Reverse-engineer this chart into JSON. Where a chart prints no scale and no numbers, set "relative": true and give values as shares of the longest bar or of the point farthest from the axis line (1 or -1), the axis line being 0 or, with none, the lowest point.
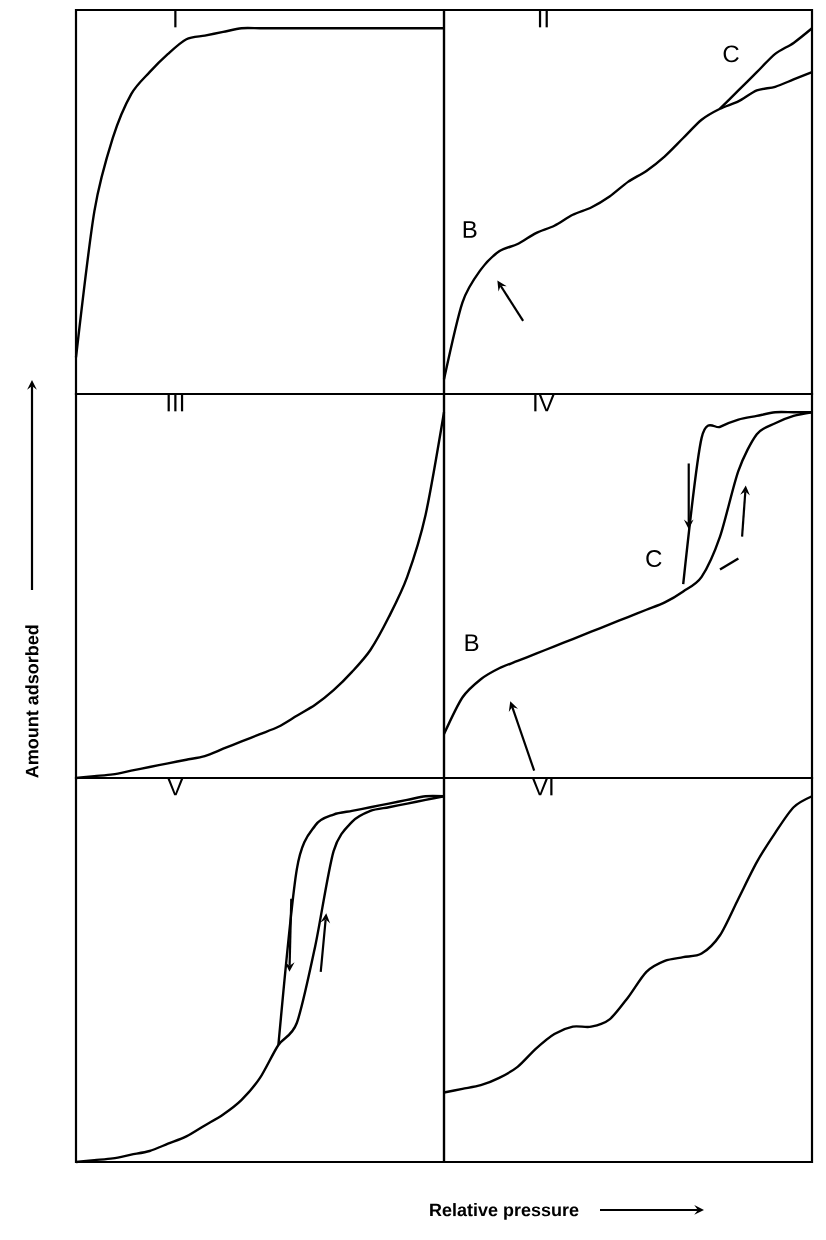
{
  "chart_data": [
    {
      "type": "line",
      "title": "I",
      "relative": true,
      "categories": [
        null,
        null,
        null,
        null,
        null,
        null,
        null,
        null,
        null,
        null,
        null,
        null,
        null,
        null,
        null,
        null,
        null,
        null,
        null,
        null,
        null
      ],
      "series": [
        {
          "color": "#000000",
          "values": [
            0.1,
            0.5,
            0.7,
            0.82,
            0.88,
            0.93,
            0.97,
            0.98,
            0.99,
            1,
            1,
            1,
            1,
            1,
            1,
            1,
            1,
            1,
            1,
            1,
            1
          ]
        }
      ]
    },
    {
      "type": "line",
      "title": "II",
      "relative": true,
      "categories": [
        null,
        null,
        null,
        null,
        null,
        null,
        null,
        null,
        null,
        null,
        null,
        null,
        null,
        null,
        null,
        null,
        null,
        null,
        null,
        null,
        null
      ],
      "annotations": [
        "B",
        "C"
      ],
      "series": [
        {
          "color": "#000000",
          "values": [
            0.04,
            0.25,
            0.34,
            0.39,
            0.41,
            0.44,
            0.46,
            0.49,
            0.51,
            0.54,
            0.58,
            0.61,
            0.65,
            0.7,
            0.75,
            0.78,
            0.8,
            0.83,
            0.84,
            0.86,
            0.88
          ]
        },
        {
          "color": "#000000",
          "values": [
            null,
            null,
            null,
            null,
            null,
            null,
            null,
            null,
            null,
            null,
            null,
            null,
            null,
            null,
            null,
            0.78,
            0.83,
            0.88,
            0.93,
            0.96,
            1
          ]
        }
      ]
    },
    {
      "type": "line",
      "title": "III",
      "relative": true,
      "ylabel": "Amount adsorbed",
      "categories": [
        null,
        null,
        null,
        null,
        null,
        null,
        null,
        null,
        null,
        null,
        null,
        null,
        null,
        null,
        null,
        null,
        null,
        null,
        null,
        null,
        null
      ],
      "series": [
        {
          "color": "#000000",
          "values": [
            0,
            0.005,
            0.01,
            0.02,
            0.03,
            0.04,
            0.05,
            0.06,
            0.08,
            0.1,
            0.12,
            0.14,
            0.17,
            0.2,
            0.24,
            0.29,
            0.35,
            0.44,
            0.55,
            0.72,
            1
          ]
        }
      ]
    },
    {
      "type": "line",
      "title": "IV",
      "relative": true,
      "categories": [
        null,
        null,
        null,
        null,
        null,
        null,
        null,
        null,
        null,
        null,
        null,
        null,
        null,
        null,
        null,
        null,
        null,
        null,
        null,
        null,
        null
      ],
      "annotations": [
        "B",
        "C"
      ],
      "series": [
        {
          "color": "#000000",
          "values": [
            0.12,
            0.22,
            0.27,
            0.3,
            0.32,
            0.34,
            0.36,
            0.38,
            0.4,
            0.42,
            0.44,
            0.46,
            0.48,
            0.51,
            0.55,
            0.66,
            0.84,
            0.94,
            0.97,
            0.99,
            1
          ]
        },
        {
          "color": "#000000",
          "values": [
            null,
            null,
            null,
            null,
            null,
            null,
            null,
            null,
            null,
            null,
            null,
            null,
            null,
            0.53,
            0.93,
            0.96,
            0.98,
            0.99,
            1,
            1,
            1
          ]
        },
        {
          "color": "#000000",
          "values": [
            null,
            null,
            null,
            null,
            null,
            null,
            null,
            null,
            null,
            null,
            null,
            null,
            null,
            null,
            null,
            0.57,
            0.6,
            null,
            null,
            null,
            null
          ]
        }
      ]
    },
    {
      "type": "line",
      "title": "V",
      "relative": true,
      "xlabel": "Relative pressure",
      "categories": [
        null,
        null,
        null,
        null,
        null,
        null,
        null,
        null,
        null,
        null,
        null,
        null,
        null,
        null,
        null,
        null,
        null,
        null,
        null,
        null,
        null
      ],
      "series": [
        {
          "color": "#000000",
          "values": [
            0,
            0.005,
            0.01,
            0.02,
            0.03,
            0.05,
            0.07,
            0.1,
            0.13,
            0.17,
            0.23,
            0.32,
            0.38,
            0.59,
            0.85,
            0.93,
            0.96,
            0.97,
            0.98,
            0.99,
            1
          ]
        },
        {
          "color": "#000000",
          "values": [
            null,
            null,
            null,
            null,
            null,
            null,
            null,
            null,
            null,
            null,
            null,
            0.32,
            0.8,
            0.92,
            0.95,
            0.96,
            0.97,
            0.98,
            0.99,
            1,
            1
          ]
        }
      ]
    },
    {
      "type": "line",
      "title": "VI",
      "relative": true,
      "categories": [
        null,
        null,
        null,
        null,
        null,
        null,
        null,
        null,
        null,
        null,
        null,
        null,
        null,
        null,
        null,
        null,
        null,
        null,
        null,
        null,
        null
      ],
      "series": [
        {
          "color": "#000000",
          "values": [
            0.19,
            0.2,
            0.21,
            0.23,
            0.26,
            0.31,
            0.35,
            0.37,
            0.37,
            0.39,
            0.45,
            0.52,
            0.55,
            0.56,
            0.57,
            0.62,
            0.72,
            0.82,
            0.9,
            0.97,
            1
          ]
        }
      ]
    }
  ]
}
